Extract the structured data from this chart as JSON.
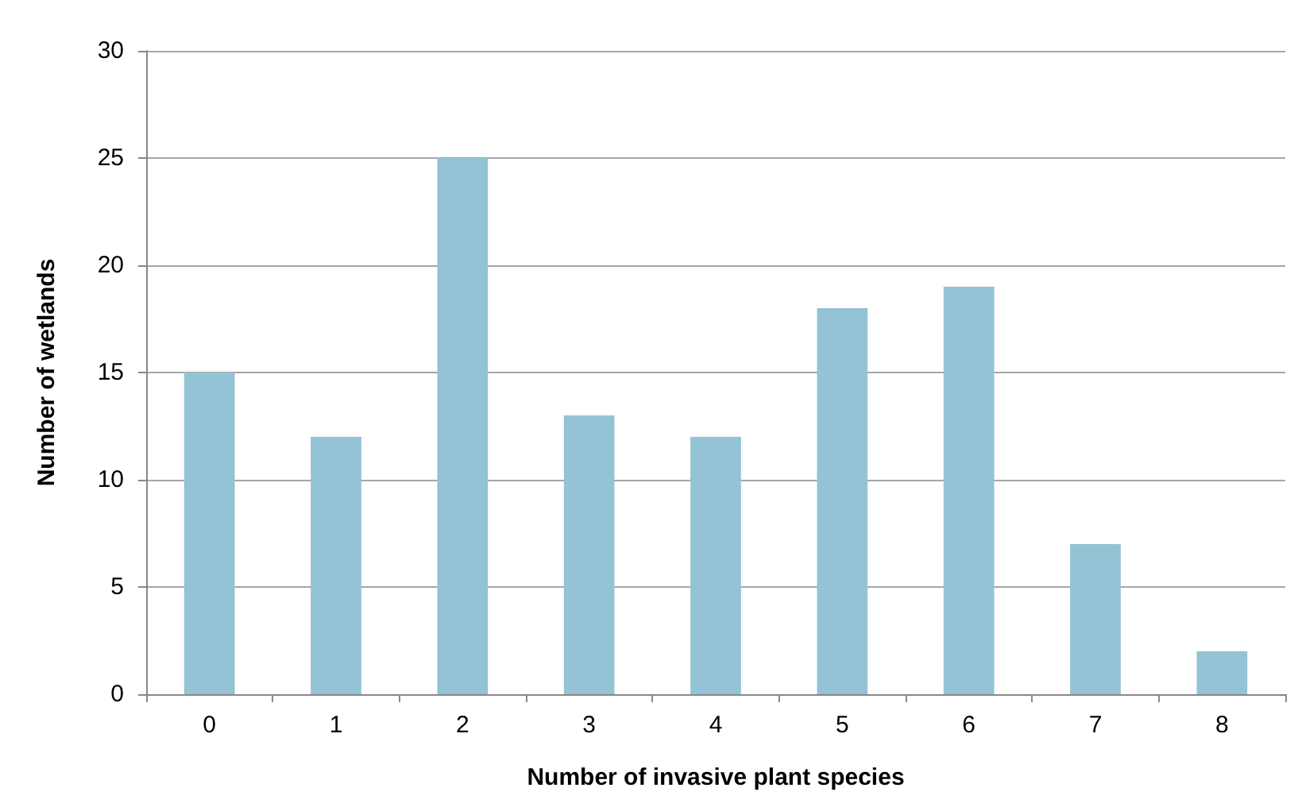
{
  "chart_data": {
    "type": "bar",
    "xlabel": "Number of invasive plant species",
    "ylabel": "Number of wetlands",
    "categories": [
      "0",
      "1",
      "2",
      "3",
      "4",
      "5",
      "6",
      "7",
      "8"
    ],
    "values": [
      15,
      12,
      25,
      13,
      12,
      18,
      19,
      7,
      2
    ],
    "color": "#93c3d4",
    "ylim": [
      0,
      30
    ],
    "yticks": [
      0,
      5,
      10,
      15,
      20,
      25,
      30
    ],
    "grid": "y"
  }
}
